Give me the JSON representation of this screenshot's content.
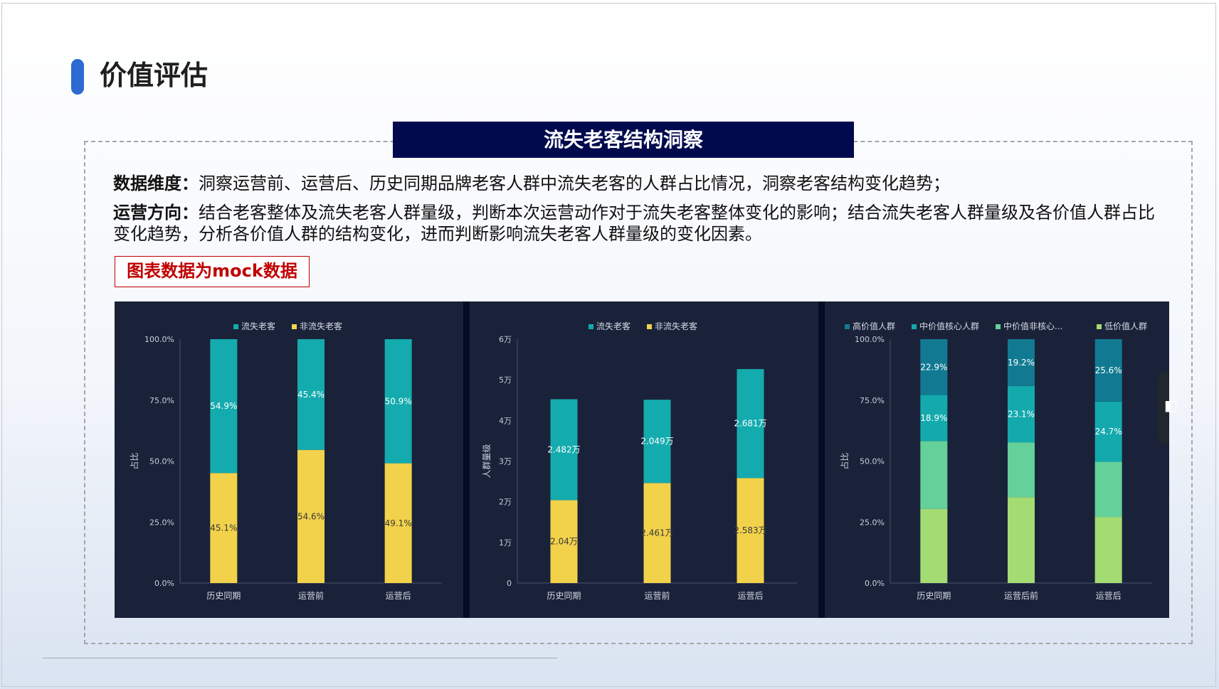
{
  "page": {
    "title": "价值评估",
    "section_header": "流失老客结构洞察",
    "desc1_label": "数据维度：",
    "desc1_text": "洞察运营前、运营后、历史同期品牌老客人群中流失老客的人群占比情况，洞察老客结构变化趋势；",
    "desc2_label": "运营方向：",
    "desc2_text": "结合老客整体及流失老客人群量级，判断本次运营动作对于流失老客整体变化的影响；结合流失老客人群量级及各价值人群占比变化趋势，分析各价值人群的结构变化，进而判断影响流失老客人群量级的变化因素。",
    "mock_note": "图表数据为mock数据",
    "side_tab_glyph": "◧"
  },
  "colors": {
    "accent": "#2d6bd2",
    "header_bg": "#020a4e",
    "panel_bg": "#1a2239",
    "teal": "#14abae",
    "yellow": "#f2d24b",
    "high_value": "#117a92",
    "mid_core": "#13a9ad",
    "mid_noncore": "#64d09a",
    "low_value": "#a3dc72"
  },
  "chart_data": [
    {
      "type": "bar",
      "stacked": true,
      "categories": [
        "历史同期",
        "运营前",
        "运营后"
      ],
      "series": [
        {
          "name": "非流失老客",
          "values": [
            45.1,
            54.6,
            49.1
          ],
          "labels": [
            "45.1%",
            "54.6%",
            "49.1%"
          ],
          "color": "#f2d24b"
        },
        {
          "name": "流失老客",
          "values": [
            54.9,
            45.4,
            50.9
          ],
          "labels": [
            "54.9%",
            "45.4%",
            "50.9%"
          ],
          "color": "#14abae"
        }
      ],
      "legend": [
        "流失老客",
        "非流失老客"
      ],
      "legend_colors": [
        "#14abae",
        "#f2d24b"
      ],
      "ylabel": "占比",
      "ylim": [
        0,
        100
      ],
      "yticks": [
        0,
        25,
        50,
        75,
        100
      ],
      "ytick_labels": [
        "0.0%",
        "25.0%",
        "50.0%",
        "75.0%",
        "100.0%"
      ],
      "legend_position": "top"
    },
    {
      "type": "bar",
      "stacked": true,
      "categories": [
        "历史同期",
        "运营前",
        "运营后"
      ],
      "series": [
        {
          "name": "非流失老客",
          "values": [
            2.04,
            2.461,
            2.583
          ],
          "labels": [
            "2.04万",
            "2.461万",
            "2.583万"
          ],
          "color": "#f2d24b"
        },
        {
          "name": "流失老客",
          "values": [
            2.482,
            2.049,
            2.681
          ],
          "labels": [
            "2.482万",
            "2.049万",
            "2.681万"
          ],
          "color": "#14abae"
        }
      ],
      "legend": [
        "流失老客",
        "非流失老客"
      ],
      "legend_colors": [
        "#14abae",
        "#f2d24b"
      ],
      "ylabel": "人群量级",
      "ylim": [
        0,
        6
      ],
      "yticks": [
        0,
        1,
        2,
        3,
        4,
        5,
        6
      ],
      "ytick_labels": [
        "0",
        "1万",
        "2万",
        "3万",
        "4万",
        "5万",
        "6万"
      ],
      "legend_position": "top"
    },
    {
      "type": "bar",
      "stacked": true,
      "categories": [
        "历史同期",
        "运营后前",
        "运营后"
      ],
      "series": [
        {
          "name": "低价值人群",
          "values": [
            30.4,
            35.2,
            27.1
          ],
          "labels": [
            "",
            "",
            ""
          ],
          "color": "#a3dc72"
        },
        {
          "name": "中价值非核心人群",
          "values": [
            27.8,
            22.5,
            22.6
          ],
          "labels": [
            "",
            "",
            ""
          ],
          "color": "#64d09a"
        },
        {
          "name": "中价值核心人群",
          "values": [
            18.9,
            23.1,
            24.7
          ],
          "labels": [
            "18.9%",
            "23.1%",
            "24.7%"
          ],
          "color": "#13a9ad"
        },
        {
          "name": "高价值人群",
          "values": [
            22.9,
            19.2,
            25.6
          ],
          "labels": [
            "22.9%",
            "19.2%",
            "25.6%"
          ],
          "color": "#117a92"
        }
      ],
      "legend": [
        "高价值人群",
        "中价值核心人群",
        "中价值非核心...",
        "低价值人群"
      ],
      "legend_colors": [
        "#117a92",
        "#13a9ad",
        "#64d09a",
        "#a3dc72"
      ],
      "ylabel": "占比",
      "ylim": [
        0,
        100
      ],
      "yticks": [
        0,
        25,
        50,
        75,
        100
      ],
      "ytick_labels": [
        "0.0%",
        "25.0%",
        "50.0%",
        "75.0%",
        "100.0%"
      ],
      "legend_position": "top"
    }
  ]
}
